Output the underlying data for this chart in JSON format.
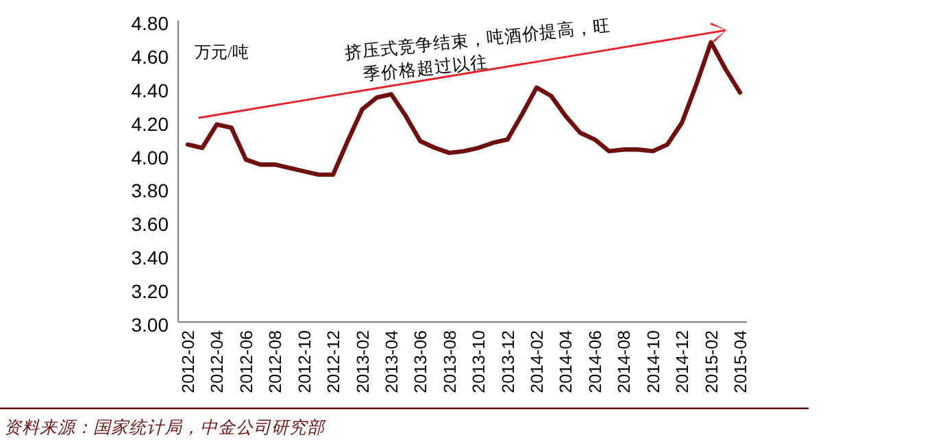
{
  "chart_data": {
    "type": "line",
    "ylabel": "万元/吨",
    "categories": [
      "2012-02",
      null,
      "2012-04",
      null,
      "2012-06",
      null,
      "2012-08",
      null,
      "2012-10",
      null,
      "2012-12",
      null,
      "2013-02",
      null,
      "2013-04",
      null,
      "2013-06",
      null,
      "2013-08",
      null,
      "2013-10",
      null,
      "2013-12",
      null,
      "2014-02",
      null,
      "2014-04",
      null,
      "2014-06",
      null,
      "2014-08",
      null,
      "2014-10",
      null,
      "2014-12",
      null,
      "2015-02",
      null,
      "2015-04"
    ],
    "series": [
      {
        "color": "#6e1010",
        "values": [
          4.06,
          4.04,
          4.18,
          4.16,
          3.97,
          3.94,
          3.94,
          3.92,
          3.9,
          3.88,
          3.88,
          4.08,
          4.27,
          4.34,
          4.36,
          4.23,
          4.08,
          4.04,
          4.01,
          4.02,
          4.04,
          4.07,
          4.09,
          4.24,
          4.4,
          4.35,
          4.23,
          4.13,
          4.09,
          4.02,
          4.03,
          4.03,
          4.02,
          4.06,
          4.19,
          4.42,
          4.67,
          4.51,
          4.37
        ]
      }
    ],
    "ylim": [
      3,
      4.8
    ],
    "yticks": [
      {
        "value": 3,
        "label": "3.00"
      },
      {
        "value": 3.2,
        "label": "3.20"
      },
      {
        "value": 3.4,
        "label": "3.40"
      },
      {
        "value": 3.6,
        "label": "3.60"
      },
      {
        "value": 3.8,
        "label": "3.80"
      },
      {
        "value": 4,
        "label": "4.00"
      },
      {
        "value": 4.2,
        "label": "4.20"
      },
      {
        "value": 4.4,
        "label": "4.40"
      },
      {
        "value": 4.6,
        "label": "4.60"
      },
      {
        "value": 4.8,
        "label": "4.80"
      }
    ],
    "annotations": [
      "挤压式竞争结束，吨酒价提高，旺季价格超过以往",
      "资料来源：国家统计局，中金公司研究部"
    ],
    "grid": false,
    "legend": false,
    "marker": "none",
    "line_style": "solid"
  }
}
